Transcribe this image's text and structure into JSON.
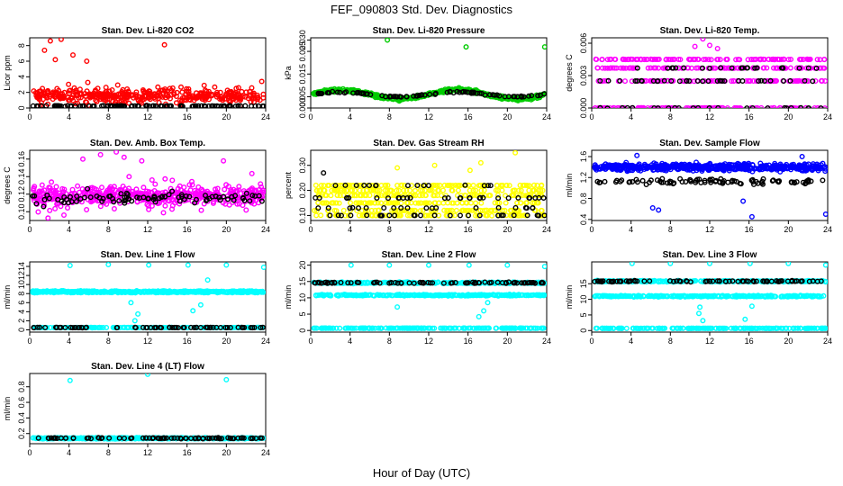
{
  "title": "FEF_090803  Std. Dev. Diagnostics",
  "xlabel": "Hour of Day (UTC)",
  "colors": {
    "red": "#ff0000",
    "green": "#00cc00",
    "magenta": "#ff00ff",
    "yellow": "#ffff00",
    "blue": "#0000ff",
    "cyan": "#00ffff",
    "black": "#000000"
  },
  "chart_data": [
    {
      "type": "scatter",
      "title": "Stan. Dev. Li-820 CO2",
      "ylabel": "Licor ppm",
      "xlim": [
        0,
        24
      ],
      "xticks": [
        0,
        4,
        8,
        12,
        16,
        20,
        24
      ],
      "ylim": [
        0,
        9
      ],
      "yticks": [
        "0",
        "2",
        "4",
        "6",
        "8"
      ],
      "ytick_values": [
        0,
        2,
        4,
        6,
        8
      ],
      "series": [
        {
          "color": "red",
          "pattern": "cloud",
          "base": 1.6,
          "spread": 1.2,
          "n": 420,
          "outliers": [
            [
              2.1,
              8.6
            ],
            [
              3.2,
              8.8
            ],
            [
              13.7,
              8.1
            ],
            [
              1.5,
              7.4
            ],
            [
              2.6,
              6.2
            ],
            [
              4.4,
              6.8
            ],
            [
              5.8,
              6.0
            ],
            [
              23.6,
              3.4
            ],
            [
              21.0,
              2.5
            ]
          ]
        },
        {
          "color": "black",
          "pattern": "line",
          "base": 0.25,
          "spread": 0.08,
          "n": 110,
          "outliers": []
        }
      ]
    },
    {
      "type": "scatter",
      "title": "Stan. Dev. Li-820 Pressure",
      "ylabel": "kPa",
      "xlim": [
        0,
        24
      ],
      "xticks": [
        0,
        4,
        8,
        12,
        16,
        20,
        24
      ],
      "ylim": [
        0,
        0.031
      ],
      "yticks": [
        "0.000",
        "0.005",
        "0.015",
        "0.025",
        "0.030"
      ],
      "ytick_values": [
        0,
        0.005,
        0.015,
        0.025,
        0.03
      ],
      "series": [
        {
          "color": "green",
          "pattern": "wave",
          "base": 0.006,
          "spread": 0.002,
          "n": 520,
          "outliers": [
            [
              7.8,
              0.03
            ],
            [
              15.8,
              0.027
            ],
            [
              23.8,
              0.027
            ]
          ]
        },
        {
          "color": "black",
          "pattern": "wave",
          "base": 0.006,
          "spread": 0.001,
          "n": 90,
          "outliers": []
        }
      ]
    },
    {
      "type": "scatter",
      "title": "Stan. Dev. Li-820 Temp.",
      "ylabel": "degrees C",
      "xlim": [
        0,
        24
      ],
      "xticks": [
        0,
        4,
        8,
        12,
        16,
        20,
        24
      ],
      "ylim": [
        0,
        0.0065
      ],
      "yticks": [
        "0.000",
        "0.003",
        "0.006"
      ],
      "ytick_values": [
        0,
        0.003,
        0.006
      ],
      "series": [
        {
          "color": "magenta",
          "pattern": "levels",
          "levels": [
            0,
            0.0025,
            0.0037,
            0.0045
          ],
          "n": 420,
          "outliers": [
            [
              11.3,
              0.0064
            ],
            [
              12.0,
              0.0058
            ],
            [
              10.5,
              0.0057
            ],
            [
              12.8,
              0.0055
            ]
          ]
        },
        {
          "color": "black",
          "pattern": "levels",
          "levels": [
            0,
            0.0025,
            0.0037
          ],
          "n": 80,
          "outliers": []
        }
      ]
    },
    {
      "type": "scatter",
      "title": "Stan. Dev. Amb. Box Temp.",
      "ylabel": "degrees C",
      "xlim": [
        0,
        24
      ],
      "xticks": [
        0,
        4,
        8,
        12,
        16,
        20,
        24
      ],
      "ylim": [
        0.09,
        0.17
      ],
      "yticks": [
        "0.10",
        "0.12",
        "0.14",
        "0.16"
      ],
      "ytick_values": [
        0.1,
        0.12,
        0.14,
        0.16
      ],
      "series": [
        {
          "color": "magenta",
          "pattern": "cloud",
          "base": 0.118,
          "spread": 0.015,
          "n": 520,
          "outliers": [
            [
              8.8,
              0.168
            ],
            [
              7.2,
              0.165
            ],
            [
              9.6,
              0.162
            ],
            [
              5.4,
              0.16
            ],
            [
              11.4,
              0.158
            ],
            [
              19.7,
              0.158
            ]
          ]
        },
        {
          "color": "black",
          "pattern": "cloud",
          "base": 0.115,
          "spread": 0.008,
          "n": 90,
          "outliers": []
        }
      ]
    },
    {
      "type": "scatter",
      "title": "Stan. Dev. Gas Stream RH",
      "ylabel": "percent",
      "xlim": [
        0,
        24
      ],
      "xticks": [
        0,
        4,
        8,
        12,
        16,
        20,
        24
      ],
      "ylim": [
        0.08,
        0.36
      ],
      "yticks": [
        "0.10",
        "0.20",
        "0.30"
      ],
      "ytick_values": [
        0.1,
        0.2,
        0.3
      ],
      "series": [
        {
          "color": "yellow",
          "pattern": "levels",
          "levels": [
            0.1,
            0.12,
            0.15,
            0.18,
            0.2,
            0.22
          ],
          "n": 520,
          "outliers": [
            [
              20.8,
              0.35
            ],
            [
              17.3,
              0.31
            ],
            [
              12.6,
              0.3
            ],
            [
              8.8,
              0.29
            ],
            [
              16.2,
              0.28
            ]
          ]
        },
        {
          "color": "black",
          "pattern": "levels",
          "levels": [
            0.1,
            0.13,
            0.17,
            0.22
          ],
          "n": 90,
          "outliers": [
            [
              1.3,
              0.27
            ]
          ]
        }
      ]
    },
    {
      "type": "scatter",
      "title": "Stan. Dev. Sample Flow",
      "ylabel": "ml/min",
      "xlim": [
        0,
        24
      ],
      "xticks": [
        0,
        4,
        8,
        12,
        16,
        20,
        24
      ],
      "ylim": [
        0.38,
        1.72
      ],
      "yticks": [
        "0.4",
        "0.8",
        "1.2",
        "1.6"
      ],
      "ytick_values": [
        0.4,
        0.8,
        1.2,
        1.6
      ],
      "series": [
        {
          "color": "blue",
          "pattern": "band",
          "base": 1.4,
          "spread": 0.1,
          "n": 540,
          "outliers": [
            [
              6.2,
              0.62
            ],
            [
              6.8,
              0.58
            ],
            [
              16.3,
              0.45
            ],
            [
              23.8,
              0.5
            ],
            [
              15.4,
              0.75
            ],
            [
              4.6,
              1.62
            ],
            [
              21.4,
              1.6
            ]
          ]
        },
        {
          "color": "black",
          "pattern": "band",
          "base": 1.12,
          "spread": 0.07,
          "n": 90,
          "outliers": []
        }
      ]
    },
    {
      "type": "scatter",
      "title": "Stan. Dev. Line 1 Flow",
      "ylabel": "ml/min",
      "xlim": [
        0,
        24
      ],
      "xticks": [
        0,
        4,
        8,
        12,
        16,
        20,
        24
      ],
      "ylim": [
        -0.5,
        15
      ],
      "yticks": [
        "0",
        "2",
        "4",
        "6",
        "8",
        "10",
        "12",
        "14"
      ],
      "ytick_values": [
        0,
        2,
        4,
        6,
        8,
        10,
        12,
        14
      ],
      "series": [
        {
          "color": "cyan",
          "pattern": "band",
          "base": 8.4,
          "spread": 0.3,
          "n": 540,
          "outliers": [
            [
              4.1,
              14.2
            ],
            [
              8.0,
              14.4
            ],
            [
              12.1,
              14.3
            ],
            [
              16.1,
              14.3
            ],
            [
              20.0,
              14.3
            ],
            [
              23.8,
              13.8
            ],
            [
              10.7,
              2.0
            ],
            [
              16.6,
              4.2
            ],
            [
              17.4,
              5.5
            ],
            [
              18.1,
              11.0
            ],
            [
              10.3,
              6.0
            ],
            [
              11.0,
              3.5
            ]
          ]
        },
        {
          "color": "cyan",
          "pattern": "line",
          "base": 0.5,
          "spread": 0.05,
          "n": 200,
          "outliers": []
        },
        {
          "color": "black",
          "pattern": "line",
          "base": 0.5,
          "spread": 0.05,
          "n": 70,
          "outliers": []
        }
      ]
    },
    {
      "type": "scatter",
      "title": "Stan. Dev. Line 2 Flow",
      "ylabel": "ml/min",
      "xlim": [
        0,
        24
      ],
      "xticks": [
        0,
        4,
        8,
        12,
        16,
        20,
        24
      ],
      "ylim": [
        -0.5,
        21
      ],
      "yticks": [
        "0",
        "5",
        "10",
        "15",
        "20"
      ],
      "ytick_values": [
        0,
        5,
        10,
        15,
        20
      ],
      "series": [
        {
          "color": "cyan",
          "pattern": "band",
          "base": 14.6,
          "spread": 0.3,
          "n": 300,
          "outliers": [
            [
              4.1,
              20.0
            ],
            [
              8.0,
              20.0
            ],
            [
              12.0,
              20.0
            ],
            [
              16.1,
              20.0
            ],
            [
              20.0,
              20.0
            ],
            [
              23.8,
              19.6
            ]
          ]
        },
        {
          "color": "cyan",
          "pattern": "band",
          "base": 10.8,
          "spread": 0.3,
          "n": 300,
          "outliers": [
            [
              8.8,
              7.2
            ],
            [
              17.6,
              6.0
            ],
            [
              18.0,
              8.5
            ],
            [
              17.1,
              4.2
            ]
          ]
        },
        {
          "color": "cyan",
          "pattern": "line",
          "base": 0.7,
          "spread": 0.05,
          "n": 200,
          "outliers": []
        },
        {
          "color": "black",
          "pattern": "band",
          "base": 14.6,
          "spread": 0.25,
          "n": 80,
          "outliers": []
        }
      ]
    },
    {
      "type": "scatter",
      "title": "Stan. Dev. Line 3 Flow",
      "ylabel": "ml/min",
      "xlim": [
        0,
        24
      ],
      "xticks": [
        0,
        4,
        8,
        12,
        16,
        20,
        24
      ],
      "ylim": [
        -0.5,
        22
      ],
      "yticks": [
        "0",
        "5",
        "10",
        "15"
      ],
      "ytick_values": [
        0,
        5,
        10,
        15
      ],
      "series": [
        {
          "color": "cyan",
          "pattern": "band",
          "base": 15.8,
          "spread": 0.3,
          "n": 300,
          "outliers": [
            [
              4.1,
              21.5
            ],
            [
              8.0,
              21.5
            ],
            [
              12.0,
              21.5
            ],
            [
              16.1,
              21.5
            ],
            [
              20.0,
              21.5
            ],
            [
              23.8,
              21.0
            ]
          ]
        },
        {
          "color": "cyan",
          "pattern": "band",
          "base": 11.0,
          "spread": 0.3,
          "n": 300,
          "outliers": [
            [
              10.9,
              5.5
            ],
            [
              11.3,
              3.2
            ],
            [
              15.6,
              3.6
            ],
            [
              16.3,
              7.8
            ],
            [
              11.0,
              7.5
            ]
          ]
        },
        {
          "color": "cyan",
          "pattern": "line",
          "base": 0.7,
          "spread": 0.05,
          "n": 200,
          "outliers": []
        },
        {
          "color": "black",
          "pattern": "band",
          "base": 15.8,
          "spread": 0.25,
          "n": 80,
          "outliers": []
        }
      ]
    },
    {
      "type": "scatter",
      "title": "Stan. Dev. Line 4 (LT) Flow",
      "ylabel": "ml/min",
      "xlim": [
        0,
        24
      ],
      "xticks": [
        0,
        4,
        8,
        12,
        16,
        20,
        24
      ],
      "ylim": [
        0.07,
        0.97
      ],
      "yticks": [
        "0.2",
        "0.4",
        "0.6",
        "0.8"
      ],
      "ytick_values": [
        0.2,
        0.4,
        0.6,
        0.8
      ],
      "series": [
        {
          "color": "cyan",
          "pattern": "band",
          "base": 0.14,
          "spread": 0.012,
          "n": 520,
          "outliers": [
            [
              4.1,
              0.88
            ],
            [
              12.0,
              0.96
            ],
            [
              20.0,
              0.89
            ]
          ]
        },
        {
          "color": "black",
          "pattern": "band",
          "base": 0.14,
          "spread": 0.01,
          "n": 80,
          "outliers": []
        }
      ]
    }
  ]
}
